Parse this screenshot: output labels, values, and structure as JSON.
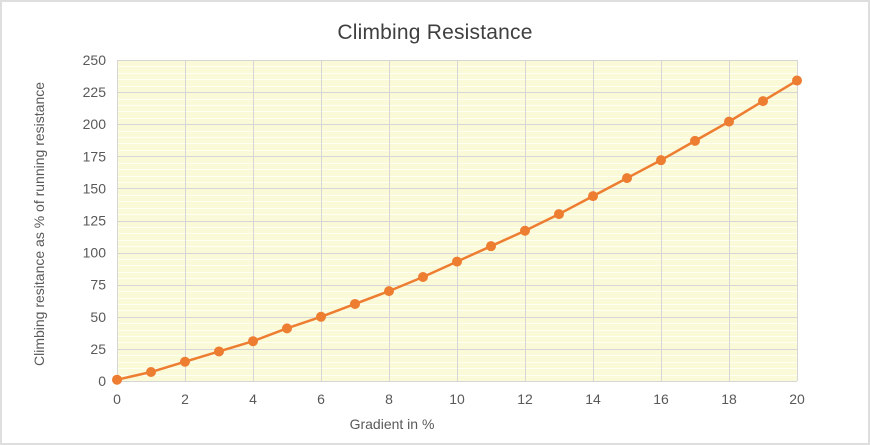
{
  "window": {
    "background": "#ffffff",
    "border_color": "#dedede"
  },
  "chart_data": {
    "type": "line",
    "title": "Climbing Resistance",
    "xlabel": "Gradient in %",
    "ylabel": "Climbing resitance as % of running resistance",
    "x": [
      0,
      1,
      2,
      3,
      4,
      5,
      6,
      7,
      8,
      9,
      10,
      11,
      12,
      13,
      14,
      15,
      16,
      17,
      18,
      19,
      20
    ],
    "y": [
      1,
      7,
      15,
      23,
      31,
      41,
      50,
      60,
      70,
      81,
      93,
      105,
      117,
      130,
      144,
      158,
      172,
      187,
      202,
      218,
      234
    ],
    "xlim": [
      0,
      20
    ],
    "ylim": [
      0,
      250
    ],
    "x_ticks": [
      0,
      2,
      4,
      6,
      8,
      10,
      12,
      14,
      16,
      18,
      20
    ],
    "y_ticks": [
      0,
      25,
      50,
      75,
      100,
      125,
      150,
      175,
      200,
      225,
      250
    ],
    "y_minor_step": 5,
    "grid": true,
    "legend": "none",
    "marker": "circle",
    "colors": {
      "series": "#ED7D31",
      "plot_background": "#FAFAD9",
      "minor_gridline": "#FFFFF2",
      "major_gridline": "#D6D6D6",
      "axis_line": "#C9C9C9",
      "tick_label": "#595959",
      "axis_title": "#595959",
      "title": "#3F3F3F"
    }
  }
}
